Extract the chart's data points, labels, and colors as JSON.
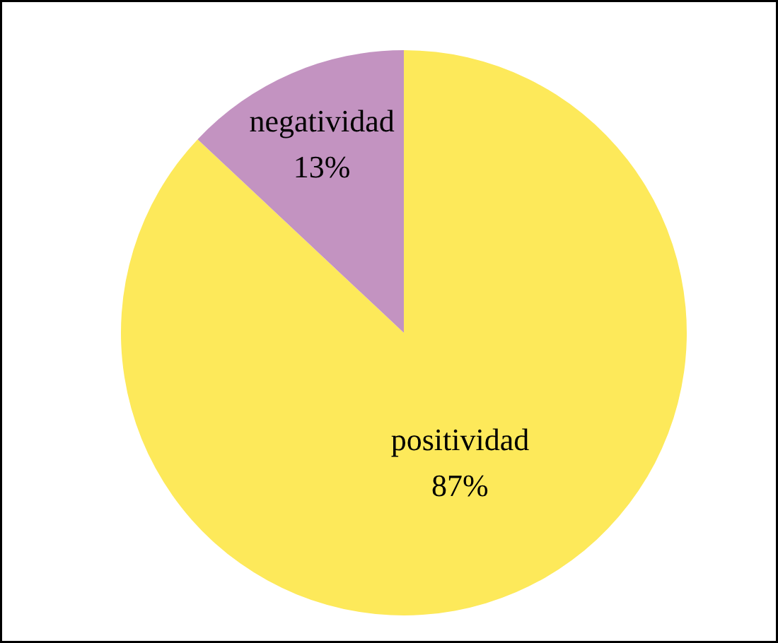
{
  "chart_data": {
    "type": "pie",
    "categories": [
      "positividad",
      "negatividad"
    ],
    "values": [
      87,
      13
    ],
    "colors": [
      "#fde95a",
      "#c393c1"
    ],
    "value_labels": [
      "87%",
      "13%"
    ]
  }
}
